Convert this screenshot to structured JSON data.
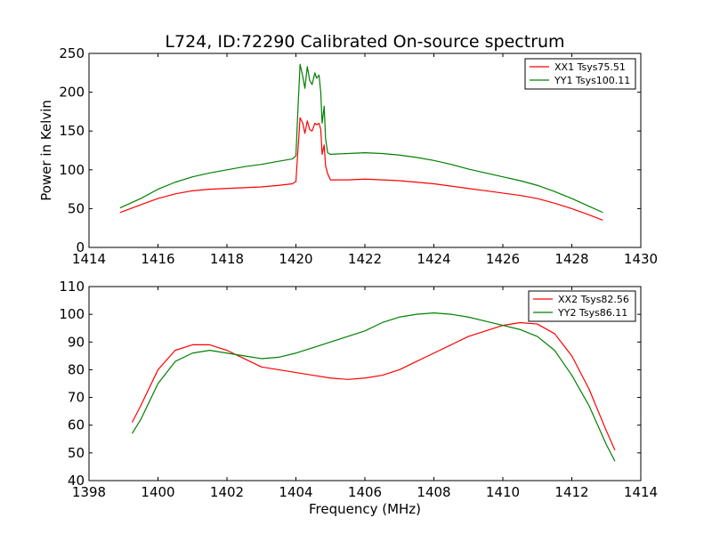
{
  "chart_data": [
    {
      "type": "line",
      "title": "L724, ID:72290 Calibrated On-source spectrum",
      "xlabel": "",
      "ylabel": "Power in Kelvin",
      "xlim": [
        1414,
        1430
      ],
      "ylim": [
        0,
        250
      ],
      "xticks": [
        1414,
        1416,
        1418,
        1420,
        1422,
        1424,
        1426,
        1428,
        1430
      ],
      "yticks": [
        0,
        50,
        100,
        150,
        200,
        250
      ],
      "legend_position": "top-right",
      "grid": false,
      "series": [
        {
          "name": "XX1 Tsys75.51",
          "color": "#ff0000",
          "points": [
            [
              1414.9,
              45
            ],
            [
              1415.5,
              55
            ],
            [
              1416.0,
              63
            ],
            [
              1416.5,
              69
            ],
            [
              1417.0,
              73
            ],
            [
              1417.5,
              75
            ],
            [
              1418.0,
              76
            ],
            [
              1418.5,
              77
            ],
            [
              1419.0,
              78
            ],
            [
              1419.5,
              80
            ],
            [
              1419.9,
              82
            ],
            [
              1420.0,
              85
            ],
            [
              1420.05,
              120
            ],
            [
              1420.12,
              167
            ],
            [
              1420.2,
              160
            ],
            [
              1420.26,
              147
            ],
            [
              1420.33,
              163
            ],
            [
              1420.4,
              152
            ],
            [
              1420.47,
              150
            ],
            [
              1420.55,
              160
            ],
            [
              1420.6,
              158
            ],
            [
              1420.67,
              160
            ],
            [
              1420.72,
              152
            ],
            [
              1420.76,
              120
            ],
            [
              1420.82,
              132
            ],
            [
              1420.86,
              105
            ],
            [
              1420.92,
              95
            ],
            [
              1421.0,
              87
            ],
            [
              1421.5,
              87
            ],
            [
              1422.0,
              88
            ],
            [
              1422.5,
              87
            ],
            [
              1423.0,
              86
            ],
            [
              1423.5,
              84
            ],
            [
              1424.0,
              82
            ],
            [
              1424.5,
              79
            ],
            [
              1425.0,
              76
            ],
            [
              1425.5,
              73
            ],
            [
              1426.0,
              70
            ],
            [
              1426.5,
              67
            ],
            [
              1427.0,
              63
            ],
            [
              1427.5,
              57
            ],
            [
              1428.0,
              50
            ],
            [
              1428.5,
              42
            ],
            [
              1428.9,
              35
            ]
          ]
        },
        {
          "name": "YY1 Tsys100.11",
          "color": "#008000",
          "points": [
            [
              1414.9,
              51
            ],
            [
              1415.5,
              63
            ],
            [
              1416.0,
              75
            ],
            [
              1416.5,
              84
            ],
            [
              1417.0,
              91
            ],
            [
              1417.5,
              96
            ],
            [
              1418.0,
              100
            ],
            [
              1418.5,
              104
            ],
            [
              1419.0,
              107
            ],
            [
              1419.5,
              111
            ],
            [
              1419.9,
              114
            ],
            [
              1420.0,
              118
            ],
            [
              1420.05,
              170
            ],
            [
              1420.12,
              236
            ],
            [
              1420.2,
              220
            ],
            [
              1420.26,
              205
            ],
            [
              1420.33,
              233
            ],
            [
              1420.4,
              215
            ],
            [
              1420.47,
              210
            ],
            [
              1420.55,
              225
            ],
            [
              1420.6,
              218
            ],
            [
              1420.67,
              222
            ],
            [
              1420.72,
              200
            ],
            [
              1420.76,
              160
            ],
            [
              1420.82,
              182
            ],
            [
              1420.86,
              140
            ],
            [
              1420.92,
              122
            ],
            [
              1421.0,
              120
            ],
            [
              1421.5,
              121
            ],
            [
              1422.0,
              122
            ],
            [
              1422.5,
              121
            ],
            [
              1423.0,
              119
            ],
            [
              1423.5,
              116
            ],
            [
              1424.0,
              112
            ],
            [
              1424.5,
              107
            ],
            [
              1425.0,
              101
            ],
            [
              1425.5,
              96
            ],
            [
              1426.0,
              91
            ],
            [
              1426.5,
              86
            ],
            [
              1427.0,
              80
            ],
            [
              1427.5,
              72
            ],
            [
              1428.0,
              63
            ],
            [
              1428.5,
              53
            ],
            [
              1428.9,
              45
            ]
          ]
        }
      ]
    },
    {
      "type": "line",
      "title": "",
      "xlabel": "Frequency (MHz)",
      "ylabel": "",
      "xlim": [
        1398,
        1414
      ],
      "ylim": [
        40,
        110
      ],
      "xticks": [
        1398,
        1400,
        1402,
        1404,
        1406,
        1408,
        1410,
        1412,
        1414
      ],
      "yticks": [
        40,
        50,
        60,
        70,
        80,
        90,
        100,
        110
      ],
      "legend_position": "top-right",
      "grid": false,
      "series": [
        {
          "name": "XX2 Tsys82.56",
          "color": "#ff0000",
          "points": [
            [
              1399.25,
              61
            ],
            [
              1399.5,
              67
            ],
            [
              1400.0,
              80
            ],
            [
              1400.5,
              87
            ],
            [
              1401.0,
              89
            ],
            [
              1401.5,
              89
            ],
            [
              1402.0,
              87
            ],
            [
              1402.5,
              84
            ],
            [
              1403.0,
              81
            ],
            [
              1403.5,
              80
            ],
            [
              1404.0,
              79
            ],
            [
              1404.5,
              78
            ],
            [
              1405.0,
              77
            ],
            [
              1405.5,
              76.5
            ],
            [
              1406.0,
              77
            ],
            [
              1406.5,
              78
            ],
            [
              1407.0,
              80
            ],
            [
              1407.5,
              83
            ],
            [
              1408.0,
              86
            ],
            [
              1408.5,
              89
            ],
            [
              1409.0,
              92
            ],
            [
              1409.5,
              94
            ],
            [
              1410.0,
              96
            ],
            [
              1410.5,
              97
            ],
            [
              1411.0,
              96.5
            ],
            [
              1411.5,
              93
            ],
            [
              1412.0,
              85
            ],
            [
              1412.5,
              73
            ],
            [
              1413.0,
              58
            ],
            [
              1413.25,
              51
            ]
          ]
        },
        {
          "name": "YY2 Tsys86.11",
          "color": "#008000",
          "points": [
            [
              1399.25,
              57
            ],
            [
              1399.5,
              62
            ],
            [
              1400.0,
              75
            ],
            [
              1400.5,
              83
            ],
            [
              1401.0,
              86
            ],
            [
              1401.5,
              87
            ],
            [
              1402.0,
              86
            ],
            [
              1402.5,
              85
            ],
            [
              1403.0,
              84
            ],
            [
              1403.5,
              84.5
            ],
            [
              1404.0,
              86
            ],
            [
              1404.5,
              88
            ],
            [
              1405.0,
              90
            ],
            [
              1405.5,
              92
            ],
            [
              1406.0,
              94
            ],
            [
              1406.5,
              97
            ],
            [
              1407.0,
              99
            ],
            [
              1407.5,
              100
            ],
            [
              1408.0,
              100.5
            ],
            [
              1408.5,
              100
            ],
            [
              1409.0,
              99
            ],
            [
              1409.5,
              97.5
            ],
            [
              1410.0,
              96
            ],
            [
              1410.5,
              94.5
            ],
            [
              1411.0,
              92
            ],
            [
              1411.5,
              87
            ],
            [
              1412.0,
              78
            ],
            [
              1412.5,
              67
            ],
            [
              1413.0,
              53
            ],
            [
              1413.25,
              47
            ]
          ]
        }
      ]
    }
  ]
}
